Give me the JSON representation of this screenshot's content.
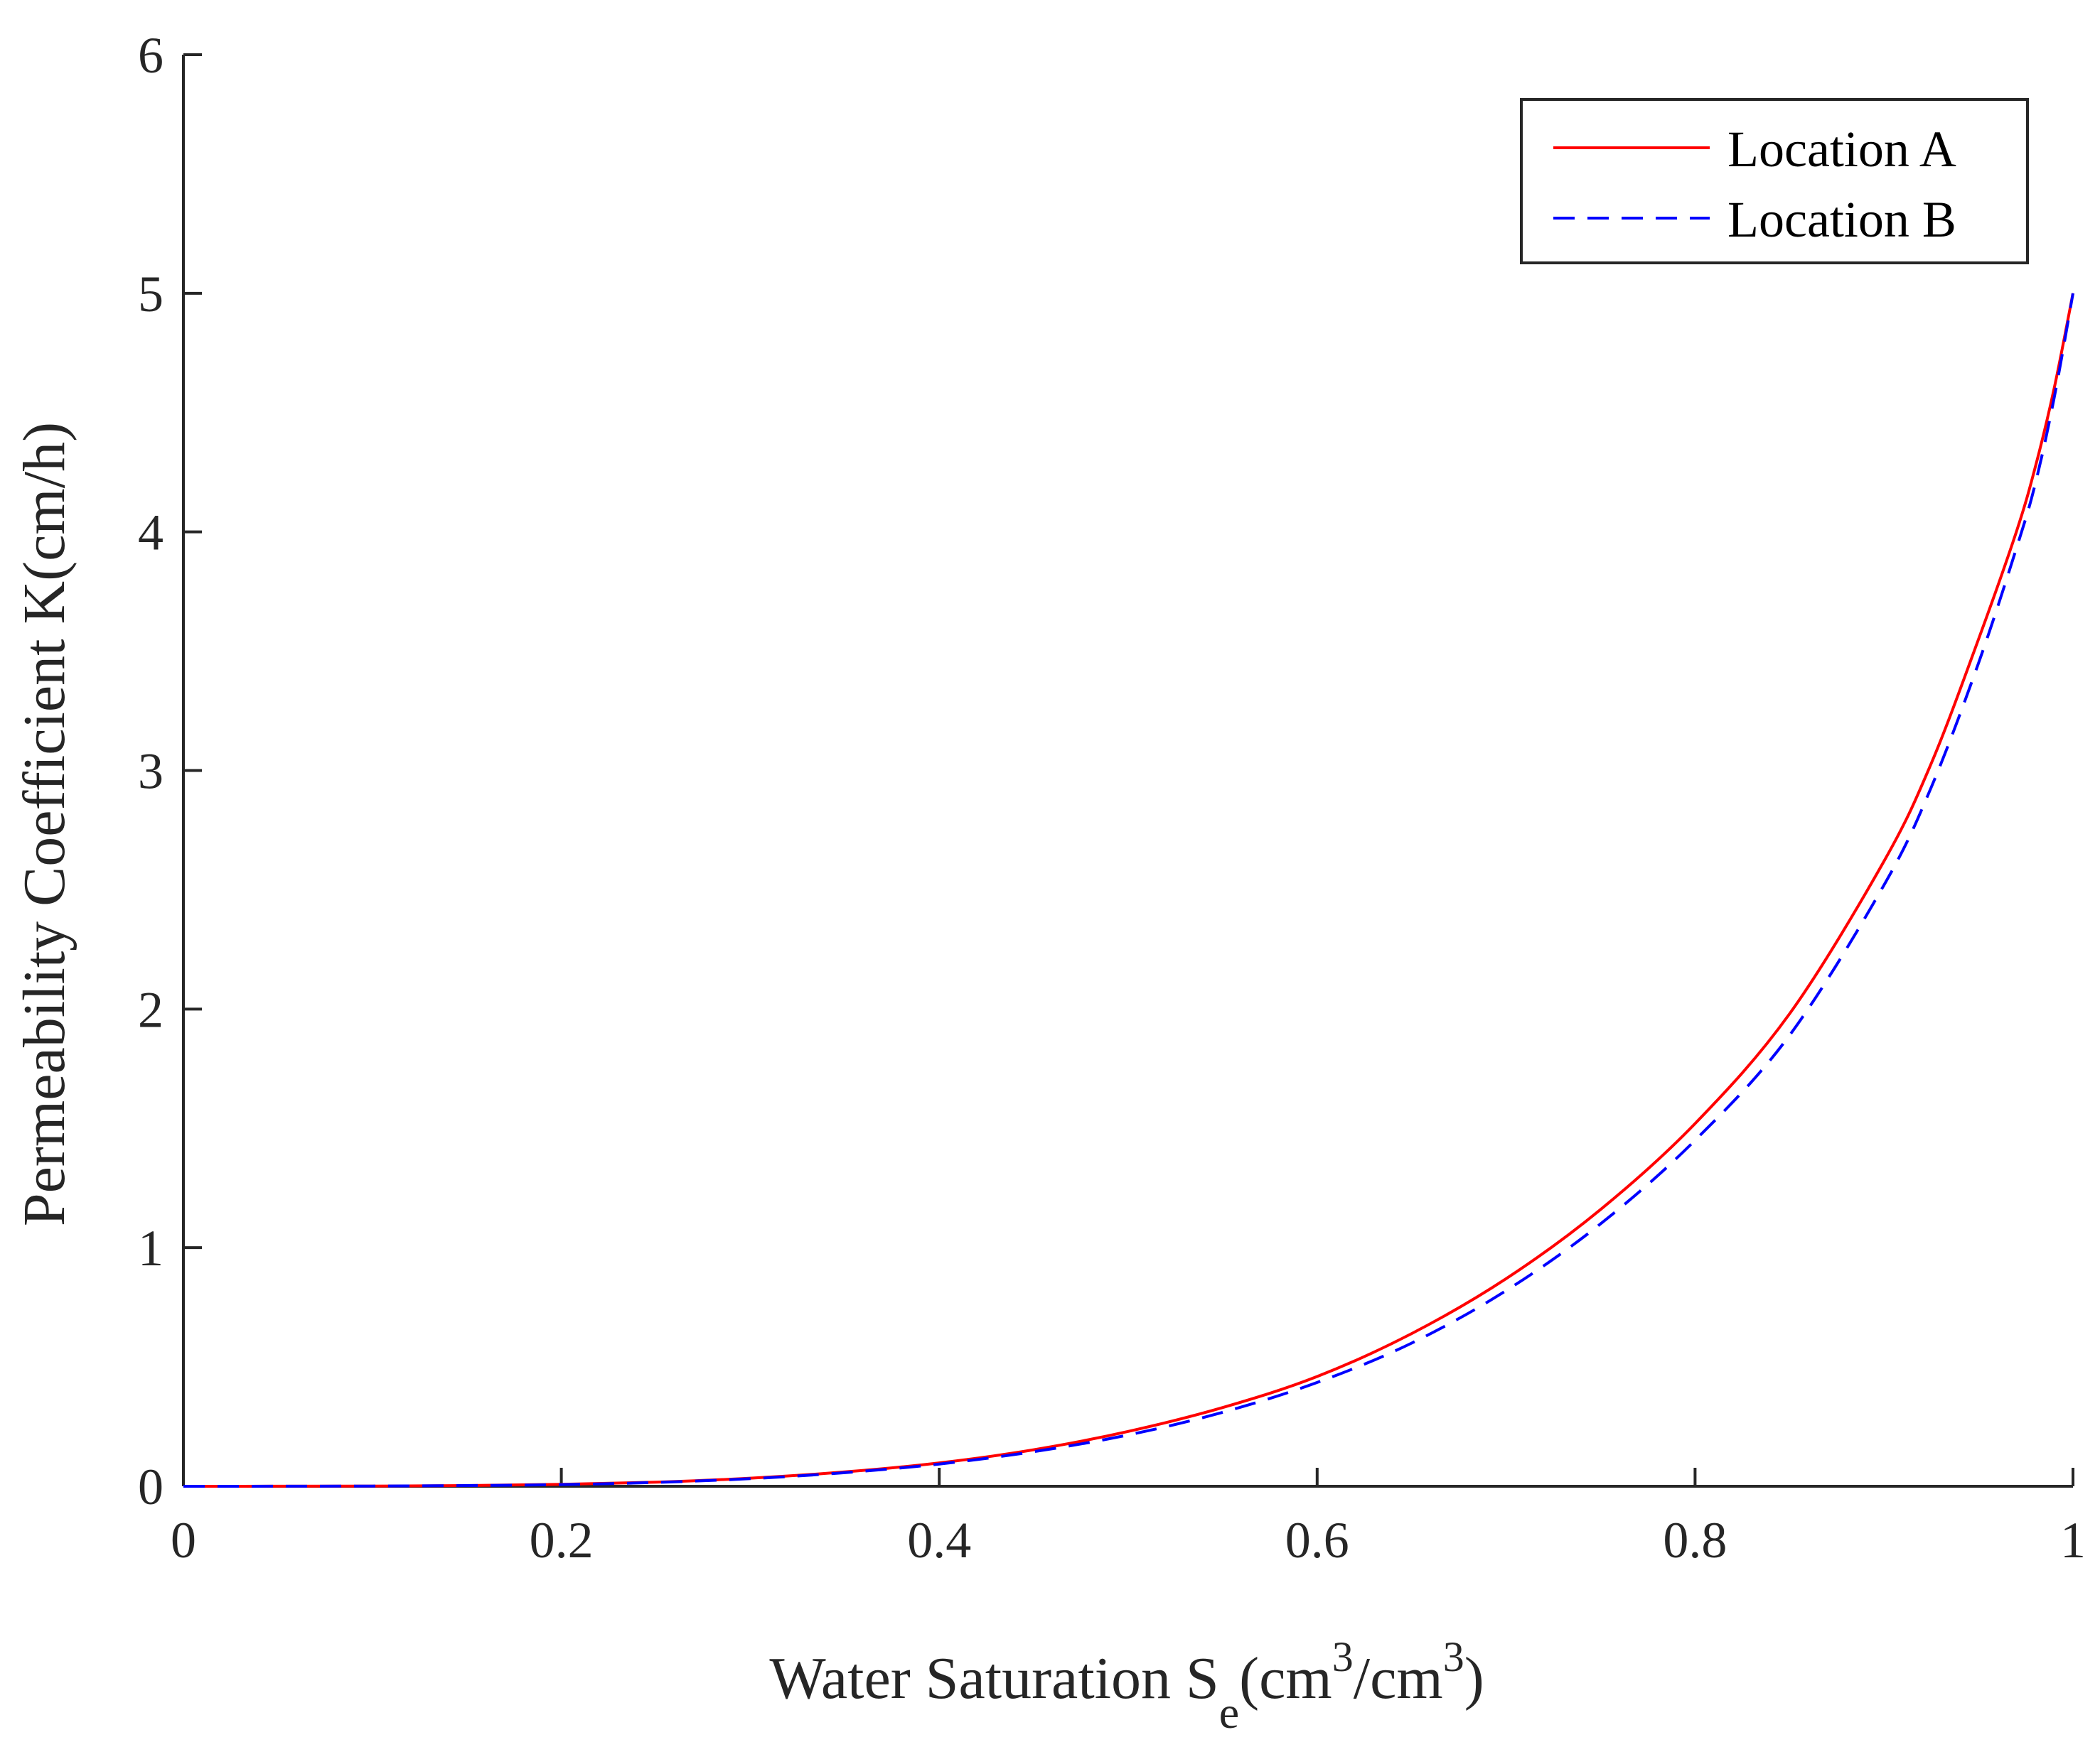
{
  "chart_data": {
    "type": "line",
    "title": "",
    "xlabel": {
      "prefix": "Water Saturation S",
      "subscript": "e",
      "open": "(cm",
      "sup1": "3",
      "mid": "/cm",
      "sup2": "3",
      "close": ")"
    },
    "ylabel": "Permeability Coefficient K(cm/h)",
    "xlim": [
      0,
      1
    ],
    "ylim": [
      0,
      6
    ],
    "xticks": [
      0,
      0.2,
      0.4,
      0.6,
      0.8,
      1
    ],
    "xtick_labels": [
      "0",
      "0.2",
      "0.4",
      "0.6",
      "0.8",
      "1"
    ],
    "yticks": [
      0,
      1,
      2,
      3,
      4,
      5,
      6
    ],
    "ytick_labels": [
      "0",
      "1",
      "2",
      "3",
      "4",
      "5",
      "6"
    ],
    "grid": false,
    "legend_position": "top-right",
    "x": [
      0,
      0.05,
      0.1,
      0.15,
      0.2,
      0.25,
      0.3,
      0.35,
      0.4,
      0.45,
      0.5,
      0.55,
      0.6,
      0.65,
      0.7,
      0.75,
      0.8,
      0.85,
      0.9,
      0.925,
      0.95,
      0.97,
      0.98,
      0.99,
      1.0
    ],
    "series": [
      {
        "name": "Location A",
        "color": "#ff0000",
        "style": "solid",
        "values": [
          0,
          0.0002,
          0.001,
          0.003,
          0.008,
          0.017,
          0.034,
          0.06,
          0.098,
          0.153,
          0.23,
          0.33,
          0.46,
          0.64,
          0.87,
          1.16,
          1.52,
          1.98,
          2.62,
          3.03,
          3.55,
          4.0,
          4.27,
          4.6,
          5.0
        ]
      },
      {
        "name": "Location B",
        "color": "#0000ff",
        "style": "dashed",
        "values": [
          0,
          0.0002,
          0.001,
          0.003,
          0.007,
          0.016,
          0.032,
          0.057,
          0.093,
          0.145,
          0.215,
          0.31,
          0.435,
          0.6,
          0.82,
          1.1,
          1.45,
          1.89,
          2.52,
          2.93,
          3.45,
          3.93,
          4.2,
          4.56,
          5.0
        ]
      }
    ]
  }
}
